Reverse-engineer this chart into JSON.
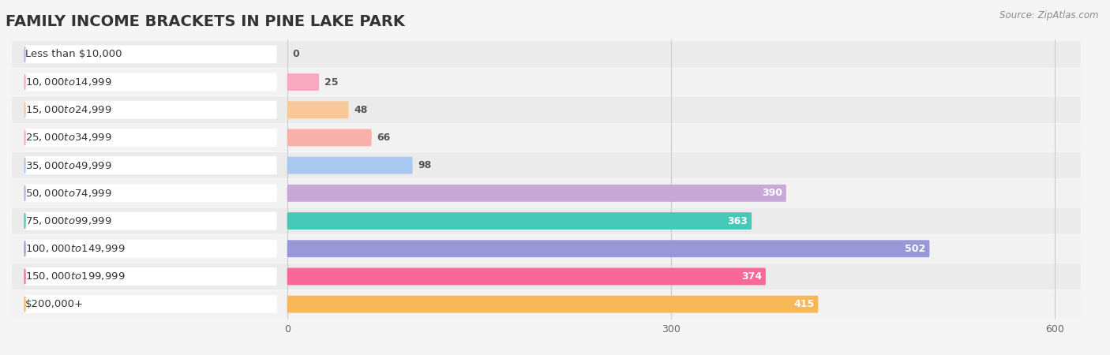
{
  "title": "FAMILY INCOME BRACKETS IN PINE LAKE PARK",
  "source": "Source: ZipAtlas.com",
  "categories": [
    "Less than $10,000",
    "$10,000 to $14,999",
    "$15,000 to $24,999",
    "$25,000 to $34,999",
    "$35,000 to $49,999",
    "$50,000 to $74,999",
    "$75,000 to $99,999",
    "$100,000 to $149,999",
    "$150,000 to $199,999",
    "$200,000+"
  ],
  "values": [
    0,
    25,
    48,
    66,
    98,
    390,
    363,
    502,
    374,
    415
  ],
  "bar_colors": [
    "#b8b8e8",
    "#f8a8c0",
    "#f8c898",
    "#f8b0a8",
    "#a8c8f0",
    "#c8a8d8",
    "#48c8b8",
    "#9898d8",
    "#f86898",
    "#f8b858"
  ],
  "row_bg_color": "#efefef",
  "row_alt_color": "#f8f8f8",
  "label_bg_color": "#ffffff",
  "xlim_data": [
    0,
    600
  ],
  "xticks": [
    0,
    300,
    600
  ],
  "background_color": "#f5f5f5",
  "title_fontsize": 14,
  "label_fontsize": 9.5,
  "value_fontsize": 9,
  "source_fontsize": 8.5
}
